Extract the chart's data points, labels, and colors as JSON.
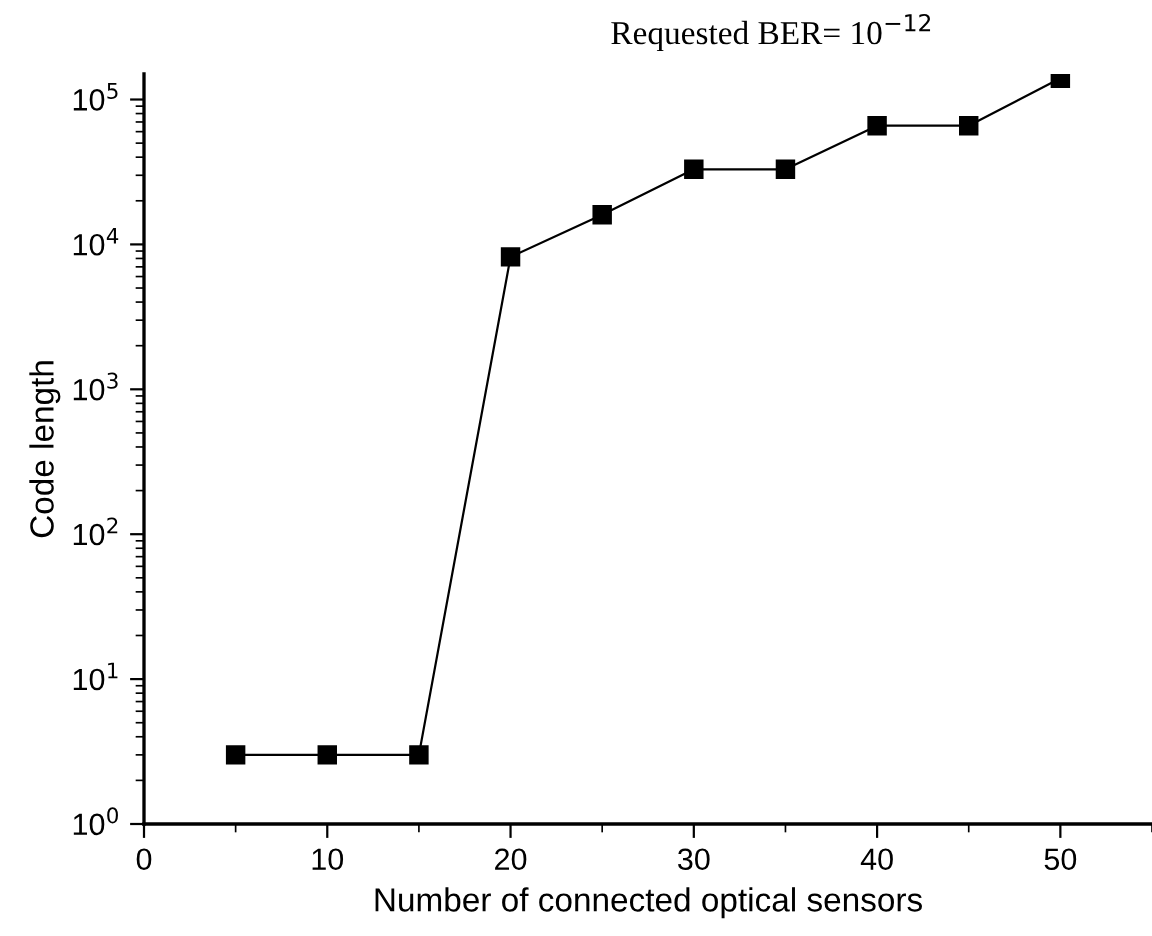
{
  "chart_data": {
    "type": "line",
    "title": "Requested BER= 10$^{−12}$",
    "xlabel": "Number of connected optical sensors",
    "ylabel": "Code length",
    "x": [
      5,
      10,
      15,
      20,
      25,
      30,
      35,
      40,
      45,
      50
    ],
    "series": [
      {
        "color": "#000000",
        "values": [
          3,
          3,
          3,
          8200,
          16000,
          33000,
          33000,
          66000,
          66000,
          140000
        ]
      }
    ],
    "xlim": [
      0,
      55
    ],
    "xticks": [
      0,
      10,
      20,
      30,
      40,
      50
    ],
    "ylim": [
      1,
      150000
    ],
    "yticks": [
      {
        "value": 1,
        "label": "10$^{0}$"
      },
      {
        "value": 10,
        "label": "10$^{1}$"
      },
      {
        "value": 100,
        "label": "10$^{2}$"
      },
      {
        "value": 1000,
        "label": "10$^{3}$"
      },
      {
        "value": 10000,
        "label": "10$^{4}$"
      },
      {
        "value": 100000,
        "label": "10$^{5}$"
      }
    ],
    "log": "y",
    "grid": false,
    "legend": false,
    "marker": "square",
    "line_style": "solid"
  }
}
